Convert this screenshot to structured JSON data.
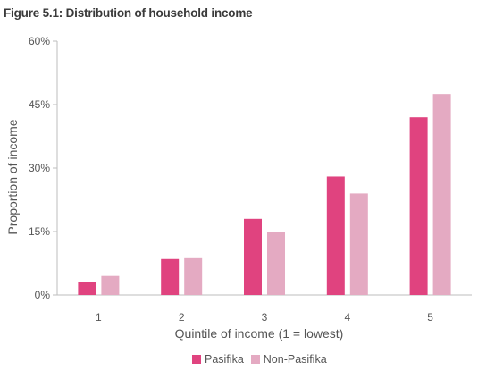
{
  "figure_title": "Figure 5.1: Distribution of household income",
  "chart_data": {
    "type": "bar",
    "title": "Figure 5.1: Distribution of household income",
    "xlabel": "Quintile of income (1 = lowest)",
    "ylabel": "Proportion of income",
    "categories": [
      "1",
      "2",
      "3",
      "4",
      "5"
    ],
    "yticks": [
      "0%",
      "15%",
      "30%",
      "45%",
      "60%"
    ],
    "ylim": [
      0,
      60
    ],
    "grid": false,
    "legend_position": "bottom",
    "series": [
      {
        "name": "Pasifika",
        "color": "#e0437f",
        "values": [
          3,
          8.5,
          18,
          28,
          42
        ]
      },
      {
        "name": "Non-Pasifika",
        "color": "#e4aac2",
        "values": [
          4.5,
          8.7,
          15,
          24,
          47.5
        ]
      }
    ]
  }
}
